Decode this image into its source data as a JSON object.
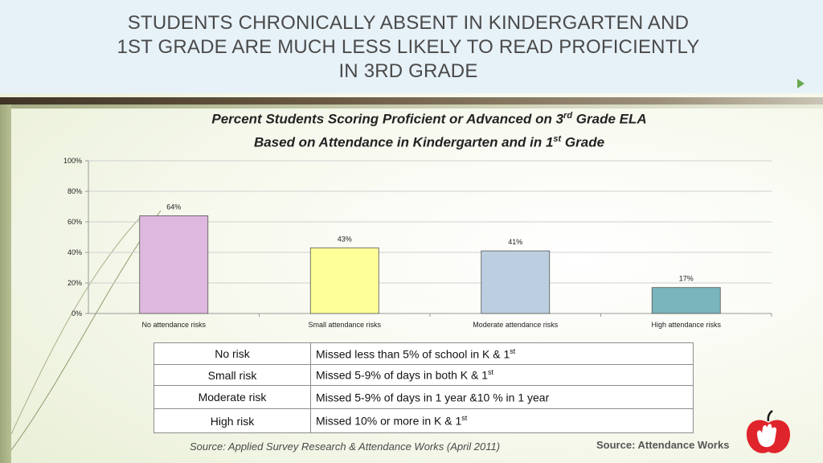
{
  "slide": {
    "title_lines": [
      "STUDENTS CHRONICALLY ABSENT IN KINDERGARTEN AND",
      "1ST GRADE ARE MUCH LESS LIKELY TO READ PROFICIENTLY",
      "IN 3RD GRADE"
    ]
  },
  "chart_data": {
    "type": "bar",
    "title_line1_pre": "Percent Students Scoring Proficient or Advanced on 3",
    "title_line1_sup": "rd",
    "title_line1_post": " Grade ELA",
    "title_line2_pre": "Based on Attendance in Kindergarten and in 1",
    "title_line2_sup": "st",
    "title_line2_post": " Grade",
    "categories": [
      "No attendance risks",
      "Small attendance risks",
      "Moderate attendance risks",
      "High attendance risks"
    ],
    "values": [
      64,
      43,
      41,
      17
    ],
    "data_labels": [
      "64%",
      "43%",
      "41%",
      "17%"
    ],
    "bar_colors": [
      "#deb8de",
      "#ffff99",
      "#bccfe0",
      "#7ab4bc"
    ],
    "yticks": [
      "0%",
      "20%",
      "40%",
      "60%",
      "80%",
      "100%"
    ],
    "ylim": [
      0,
      100
    ],
    "grid": true,
    "xlabel": "",
    "ylabel": ""
  },
  "risk_table": {
    "rows": [
      {
        "level": "No risk",
        "desc_pre": "Missed less than 5% of school in K & 1",
        "desc_sup": "st"
      },
      {
        "level": "Small risk",
        "desc_pre": "Missed  5-9% of days in both K & 1",
        "desc_sup": "st"
      },
      {
        "level": "Moderate risk",
        "desc_pre": "Missed 5-9% of days in 1 year &10 % in 1 year",
        "desc_sup": ""
      },
      {
        "level": "High risk",
        "desc_pre": "Missed 10% or more in K & 1",
        "desc_sup": "st"
      }
    ]
  },
  "sources": {
    "left": "Source: Applied Survey Research & Attendance Works (April 2011)",
    "right": "Source: Attendance Works"
  },
  "logo": {
    "icon": "apple-hand-icon",
    "colors": [
      "#e0242b",
      "#ffffff"
    ]
  }
}
